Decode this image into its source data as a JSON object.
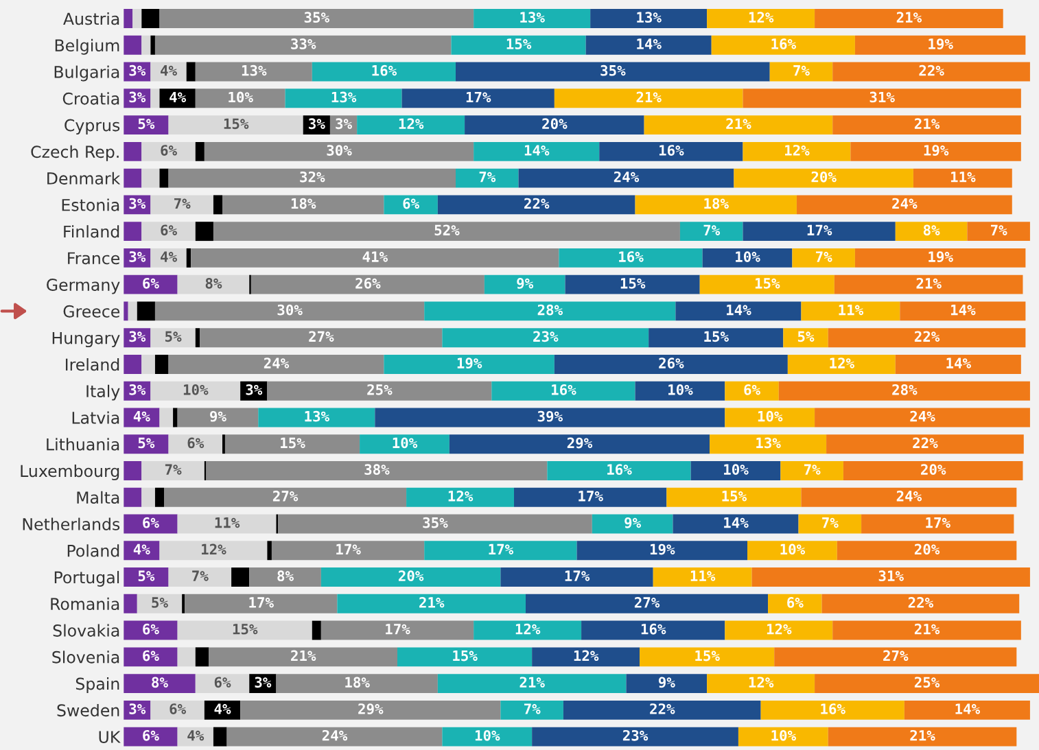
{
  "chart_data": {
    "type": "bar",
    "orientation": "horizontal",
    "stacked": true,
    "xlim": [
      0,
      102
    ],
    "tick_labels": "y",
    "grid": false,
    "legend": false,
    "categories": [
      "Austria",
      "Belgium",
      "Bulgaria",
      "Croatia",
      "Cyprus",
      "Czech Rep.",
      "Denmark",
      "Estonia",
      "Finland",
      "France",
      "Germany",
      "Greece",
      "Hungary",
      "Ireland",
      "Italy",
      "Latvia",
      "Lithuania",
      "Luxembourg",
      "Malta",
      "Netherlands",
      "Poland",
      "Portugal",
      "Romania",
      "Slovakia",
      "Slovenia",
      "Spain",
      "Sweden",
      "UK"
    ],
    "series": [
      {
        "color": "#7030a0",
        "values": [
          1,
          2,
          3,
          3,
          5,
          2,
          2,
          3,
          2,
          3,
          6,
          0.5,
          3,
          2,
          3,
          4,
          5,
          2,
          2,
          6,
          4,
          5,
          1.5,
          6,
          6,
          8,
          3,
          6
        ],
        "value_labels": [
          null,
          null,
          "3%",
          "3%",
          "5%",
          null,
          null,
          "3%",
          null,
          "3%",
          "6%",
          null,
          "3%",
          null,
          "3%",
          "4%",
          "5%",
          null,
          null,
          "6%",
          "4%",
          "5%",
          null,
          "6%",
          "6%",
          "8%",
          "3%",
          "6%"
        ]
      },
      {
        "color": "#d9d9d9",
        "values": [
          1,
          1,
          4,
          1,
          15,
          6,
          2,
          7,
          6,
          4,
          8,
          1,
          5,
          1.5,
          10,
          1.5,
          6,
          7,
          1.5,
          11,
          12,
          7,
          5,
          15,
          2,
          6,
          6,
          4
        ],
        "value_labels": [
          null,
          null,
          "4%",
          null,
          "15%",
          "6%",
          null,
          "7%",
          "6%",
          "4%",
          "8%",
          null,
          "5%",
          null,
          "10%",
          null,
          "6%",
          "7%",
          null,
          "11%",
          "12%",
          "7%",
          "5%",
          "15%",
          null,
          "6%",
          "6%",
          "4%"
        ]
      },
      {
        "color": "#000000",
        "values": [
          2,
          0.5,
          1,
          4,
          3,
          1,
          1,
          1,
          2,
          0.5,
          0.2,
          2,
          0.5,
          1.5,
          3,
          0.5,
          0.3,
          0.2,
          1,
          0.2,
          0.5,
          2,
          0.3,
          1,
          1.5,
          3,
          4,
          1.5
        ],
        "value_labels": [
          null,
          null,
          null,
          "4%",
          "3%",
          null,
          null,
          null,
          null,
          null,
          null,
          null,
          null,
          null,
          "3%",
          null,
          null,
          null,
          null,
          null,
          null,
          null,
          null,
          null,
          null,
          "3%",
          "4%",
          null
        ]
      },
      {
        "color": "#8c8c8c",
        "values": [
          35,
          33,
          13,
          10,
          3,
          30,
          32,
          18,
          52,
          41,
          26,
          30,
          27,
          24,
          25,
          9,
          15,
          38,
          27,
          35,
          17,
          8,
          17,
          17,
          21,
          18,
          29,
          24
        ],
        "value_labels": [
          "35%",
          "33%",
          "13%",
          "10%",
          "3%",
          "30%",
          "32%",
          "18%",
          "52%",
          "41%",
          "26%",
          "30%",
          "27%",
          "24%",
          "25%",
          "9%",
          "15%",
          "38%",
          "27%",
          "35%",
          "17%",
          "8%",
          "17%",
          "17%",
          "21%",
          "18%",
          "29%",
          "24%"
        ]
      },
      {
        "color": "#1ab3b3",
        "values": [
          13,
          15,
          16,
          13,
          12,
          14,
          7,
          6,
          7,
          16,
          9,
          28,
          23,
          19,
          16,
          13,
          10,
          16,
          12,
          9,
          17,
          20,
          21,
          12,
          15,
          21,
          7,
          10
        ],
        "value_labels": [
          "13%",
          "15%",
          "16%",
          "13%",
          "12%",
          "14%",
          "7%",
          "6%",
          "7%",
          "16%",
          "9%",
          "28%",
          "23%",
          "19%",
          "16%",
          "13%",
          "10%",
          "16%",
          "12%",
          "9%",
          "17%",
          "20%",
          "21%",
          "12%",
          "15%",
          "21%",
          "7%",
          "10%"
        ]
      },
      {
        "color": "#1f4e8c",
        "values": [
          13,
          14,
          35,
          17,
          20,
          16,
          24,
          22,
          17,
          10,
          15,
          14,
          15,
          26,
          10,
          39,
          29,
          10,
          17,
          14,
          19,
          17,
          27,
          16,
          12,
          9,
          22,
          23
        ],
        "value_labels": [
          "13%",
          "14%",
          "35%",
          "17%",
          "20%",
          "16%",
          "24%",
          "22%",
          "17%",
          "10%",
          "15%",
          "14%",
          "15%",
          "26%",
          "10%",
          "39%",
          "29%",
          "10%",
          "17%",
          "14%",
          "19%",
          "17%",
          "27%",
          "16%",
          "12%",
          "9%",
          "22%",
          "23%"
        ]
      },
      {
        "color": "#f9b800",
        "values": [
          12,
          16,
          7,
          21,
          21,
          12,
          20,
          18,
          8,
          7,
          15,
          11,
          5,
          12,
          6,
          10,
          13,
          7,
          15,
          7,
          10,
          11,
          6,
          12,
          15,
          12,
          16,
          10
        ],
        "value_labels": [
          "12%",
          "16%",
          "7%",
          "21%",
          "21%",
          "12%",
          "20%",
          "18%",
          "8%",
          "7%",
          "15%",
          "11%",
          "5%",
          "12%",
          "6%",
          "10%",
          "13%",
          "7%",
          "15%",
          "7%",
          "10%",
          "11%",
          "6%",
          "12%",
          "15%",
          "12%",
          "16%",
          "10%"
        ]
      },
      {
        "color": "#f07a18",
        "values": [
          21,
          19,
          22,
          31,
          21,
          19,
          11,
          24,
          7,
          19,
          21,
          14,
          22,
          14,
          28,
          24,
          22,
          20,
          24,
          17,
          20,
          31,
          22,
          21,
          27,
          25,
          14,
          21
        ],
        "value_labels": [
          "21%",
          "19%",
          "22%",
          "31%",
          "21%",
          "19%",
          "11%",
          "24%",
          "7%",
          "19%",
          "21%",
          "14%",
          "22%",
          "14%",
          "28%",
          "24%",
          "22%",
          "20%",
          "24%",
          "17%",
          "20%",
          "31%",
          "22%",
          "21%",
          "27%",
          "25%",
          "14%",
          "21%"
        ]
      }
    ]
  }
}
